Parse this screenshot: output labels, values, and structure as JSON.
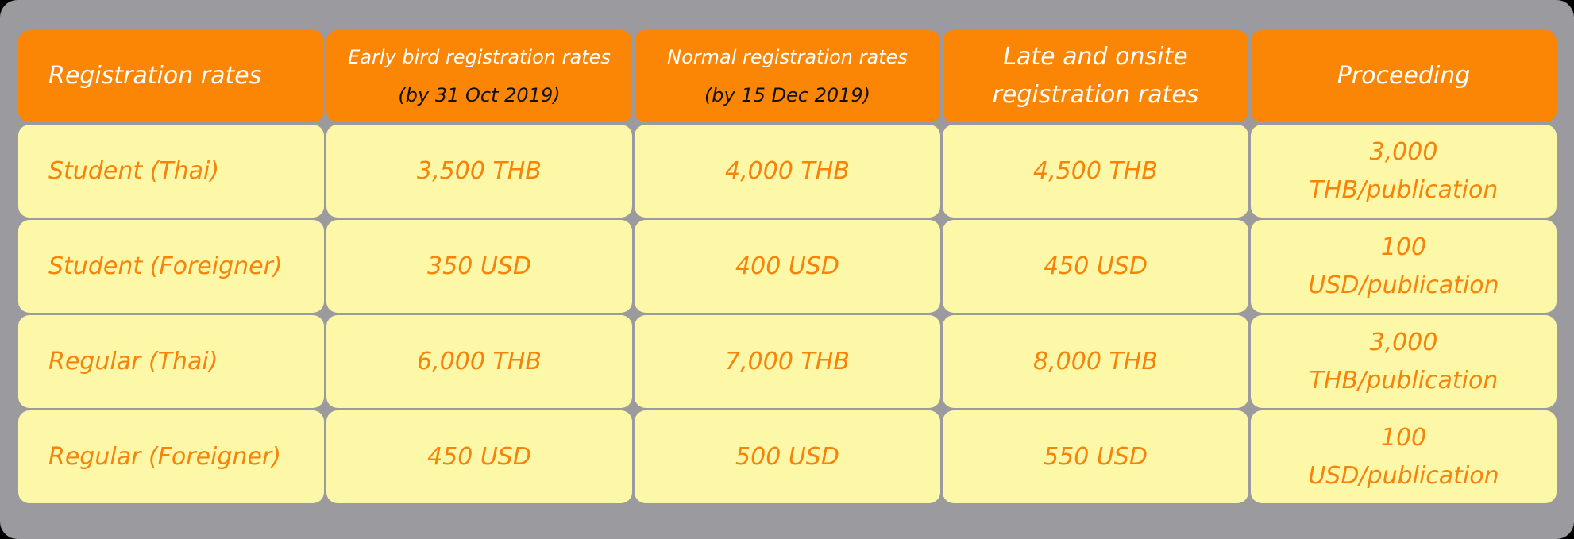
{
  "colors": {
    "background": "#9b9a9f",
    "header_fill": "#fb8505",
    "header_text": "#ffffff",
    "cell_fill": "#fdf7a8",
    "cell_text": "#f6830a"
  },
  "header": {
    "col1": "Registration rates",
    "col2_line1": "Early bird registration rates",
    "col2_line2": "(by  31 Oct 2019)",
    "col3_line1": "Normal registration rates",
    "col3_line2": "(by 15 Dec 2019)",
    "col4_line1": "Late and onsite",
    "col4_line2": "registration rates",
    "col5": "Proceeding"
  },
  "rows": [
    {
      "type": "Student (Thai)",
      "early": "3,500 THB",
      "normal": "4,000 THB",
      "late": "4,500 THB",
      "proceeding_line1": "3,000",
      "proceeding_line2": "THB/publication"
    },
    {
      "type": "Student (Foreigner)",
      "early": "350 USD",
      "normal": "400 USD",
      "late": "450 USD",
      "proceeding_line1": "100",
      "proceeding_line2": "USD/publication"
    },
    {
      "type": "Regular (Thai)",
      "early": "6,000 THB",
      "normal": "7,000 THB",
      "late": "8,000 THB",
      "proceeding_line1": "3,000",
      "proceeding_line2": "THB/publication"
    },
    {
      "type": "Regular (Foreigner)",
      "early": "450 USD",
      "normal": "500 USD",
      "late": "550 USD",
      "proceeding_line1": "100",
      "proceeding_line2": "USD/publication"
    }
  ]
}
